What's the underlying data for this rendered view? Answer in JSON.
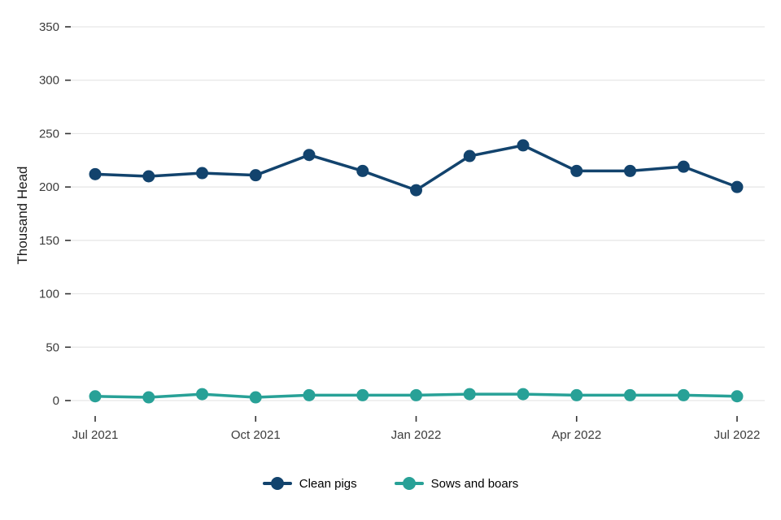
{
  "chart_data": {
    "type": "line",
    "title": "",
    "xlabel": "",
    "ylabel": "Thousand Head",
    "ylim": [
      0,
      350
    ],
    "yticks": [
      0,
      50,
      100,
      150,
      200,
      250,
      300,
      350
    ],
    "x": [
      "Jul 2021",
      "Aug 2021",
      "Sep 2021",
      "Oct 2021",
      "Nov 2021",
      "Dec 2021",
      "Jan 2022",
      "Feb 2022",
      "Mar 2022",
      "Apr 2022",
      "May 2022",
      "Jun 2022",
      "Jul 2022"
    ],
    "xtick_labels": [
      "Jul 2021",
      "Oct 2021",
      "Jan 2022",
      "Apr 2022",
      "Jul 2022"
    ],
    "xtick_indices": [
      0,
      3,
      6,
      9,
      12
    ],
    "grid": "horizontal",
    "legend_position": "bottom",
    "series": [
      {
        "name": "Clean pigs",
        "color": "#12436D",
        "values": [
          212,
          210,
          213,
          211,
          230,
          215,
          197,
          229,
          239,
          215,
          215,
          219,
          200
        ]
      },
      {
        "name": "Sows and boars",
        "color": "#28A197",
        "values": [
          4,
          3,
          6,
          3,
          5,
          5,
          5,
          6,
          6,
          5,
          5,
          5,
          4
        ]
      }
    ],
    "style": {
      "grid_color": "#e6e6e6",
      "tick_color": "#333333",
      "tick_label_color": "#3c3c3c",
      "line_width": 3.5,
      "point_radius": 7.5
    }
  }
}
